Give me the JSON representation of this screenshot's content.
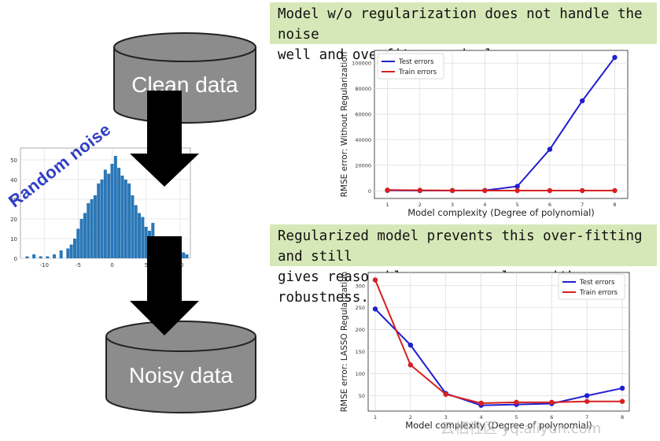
{
  "diagram": {
    "clean_label": "Clean data",
    "noisy_label": "Noisy data",
    "noise_label": "Random noise",
    "colors": {
      "cylinder": "#8c8c8c",
      "arrow": "#000000",
      "banner": "#d7e8b8",
      "hist": "#2b77b6"
    }
  },
  "banner_top": {
    "line1": "Model w/o regularization does not handle the noise",
    "line2": "well and overfits massively."
  },
  "banner_bottom": {
    "line1": "Regularized model prevents this over-fitting and still",
    "line2": "gives reasonable accuracy along with robustness."
  },
  "watermark": "云栖社区 yq.aliyun.com",
  "chart_data": [
    {
      "type": "bar",
      "name": "histogram",
      "x": [
        -12.5,
        -11.5,
        -10.5,
        -9.5,
        -8.5,
        -7.5,
        -6.5,
        -6,
        -5.5,
        -5,
        -4.5,
        -4,
        -3.5,
        -3,
        -2.5,
        -2,
        -1.5,
        -1,
        -0.5,
        0,
        0.5,
        1,
        1.5,
        2,
        2.5,
        3,
        3.5,
        4,
        4.5,
        5,
        5.5,
        6,
        6.5,
        7,
        7.5,
        8,
        8.5,
        9,
        9.5,
        10,
        10.5,
        11
      ],
      "values": [
        1,
        2,
        1,
        1,
        2,
        4,
        5,
        7,
        10,
        15,
        20,
        23,
        28,
        30,
        32,
        38,
        40,
        45,
        43,
        48,
        52,
        46,
        42,
        40,
        38,
        32,
        27,
        23,
        21,
        16,
        14,
        18,
        10,
        9,
        8,
        6,
        4,
        3,
        2,
        1,
        3,
        2
      ],
      "xticks": [
        -10,
        -5,
        0,
        5,
        10
      ],
      "yticks": [
        0,
        10,
        20,
        30,
        40,
        50
      ],
      "xlim": [
        -13.5,
        11.5
      ],
      "ylim": [
        0,
        56
      ]
    },
    {
      "type": "line",
      "name": "without-regularization",
      "x": [
        1,
        2,
        3,
        4,
        5,
        6,
        7,
        8
      ],
      "xlabel": "Model complexity (Degree of polynomial)",
      "ylabel": "RMSE error: Without Regularization",
      "xlim": [
        0.6,
        8.4
      ],
      "ylim": [
        -6000,
        110000
      ],
      "yticks": [
        0,
        20000,
        40000,
        60000,
        80000,
        100000
      ],
      "legend": "top-left",
      "series": [
        {
          "name": "Test errors",
          "color": "#1f1fcf",
          "values": [
            300,
            200,
            150,
            300,
            3500,
            32500,
            70500,
            104500
          ]
        },
        {
          "name": "Train errors",
          "color": "#d62020",
          "values": [
            600,
            400,
            250,
            200,
            200,
            150,
            150,
            150
          ]
        }
      ]
    },
    {
      "type": "line",
      "name": "lasso-regularization",
      "x": [
        1,
        2,
        3,
        4,
        5,
        6,
        7,
        8
      ],
      "xlabel": "Model complexity (Degree of polynomial)",
      "ylabel": "RMSE error: LASSO Regularization",
      "xlim": [
        0.8,
        8.2
      ],
      "ylim": [
        15,
        330
      ],
      "yticks": [
        50,
        100,
        150,
        200,
        250,
        300
      ],
      "legend": "top-right",
      "series": [
        {
          "name": "Test errors",
          "color": "#1f1fcf",
          "values": [
            247,
            165,
            55,
            28,
            30,
            32,
            50,
            67
          ]
        },
        {
          "name": "Train errors",
          "color": "#d62020",
          "values": [
            313,
            120,
            53,
            33,
            35,
            35,
            37,
            37
          ]
        }
      ]
    }
  ]
}
